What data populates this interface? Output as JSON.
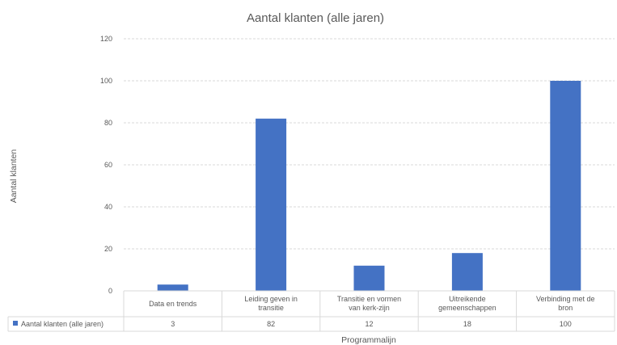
{
  "chart_data": {
    "type": "bar",
    "title": "Aantal klanten (alle jaren)",
    "xlabel": "Programmalijn",
    "ylabel": "Aantal klanten",
    "ylim": [
      0,
      120
    ],
    "yticks": [
      "0",
      "20",
      "40",
      "60",
      "80",
      "100",
      "120"
    ],
    "grid": true,
    "legend_placement": "data-table",
    "categories": [
      [
        "Data en trends"
      ],
      [
        "Leiding geven in",
        "transitie"
      ],
      [
        "Transitie en vormen",
        "van kerk-zijn"
      ],
      [
        "Uitreikende",
        "gemeenschappen"
      ],
      [
        "Verbinding met de",
        "bron"
      ]
    ],
    "series": [
      {
        "name": "Aantal klanten (alle jaren)",
        "color": "#4472c4",
        "values": [
          3,
          82,
          12,
          18,
          100
        ]
      }
    ],
    "table_values": [
      "3",
      "82",
      "12",
      "18",
      "100"
    ]
  }
}
